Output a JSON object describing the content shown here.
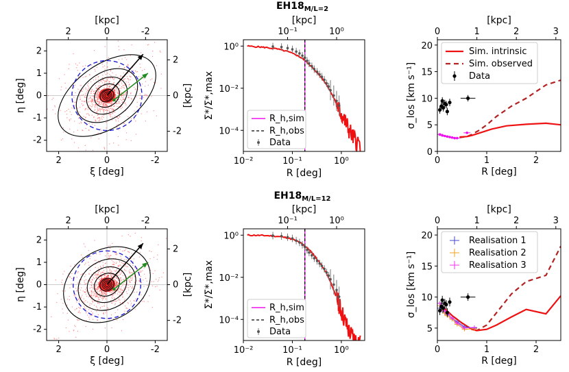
{
  "colors": {
    "sim_intrinsic": "#ee1111",
    "sim_observed": "#b22222",
    "data": "#000000",
    "rh_sim": "#ee11ee",
    "rh_obs": "#000000",
    "circle": "#1f1fd0",
    "arrow_proper_motion": "#000000",
    "arrow_orbit": "#228b22",
    "real1": "#4444cc",
    "real2": "#f0a020",
    "real3": "#ee33ee",
    "contour": "#000000",
    "particles": "#ff3333"
  },
  "chart_data": [
    {
      "id": "map1",
      "type": "scatter",
      "row": 0,
      "title": "",
      "xlabel": "ξ  [deg]",
      "ylabel": "η  [deg]",
      "top_label": "[kpc]",
      "right_label": "[kpc]",
      "xlim": [
        2.5,
        -2.5
      ],
      "ylim": [
        -2.5,
        2.5
      ],
      "x_ticks": [
        2,
        0,
        -2
      ],
      "y_ticks": [
        -2,
        -1,
        0,
        1,
        2
      ],
      "top_ticks": [
        2,
        0,
        -2
      ],
      "right_ticks": [
        2,
        0,
        -2
      ],
      "kpc_per_deg": 1.25,
      "ellipse_axes": [
        [
          0.3,
          0.24
        ],
        [
          0.55,
          0.45
        ],
        [
          0.9,
          0.7
        ],
        [
          1.4,
          0.95
        ],
        [
          2.3,
          1.3
        ]
      ],
      "ellipse_angle_deg": 35,
      "circle_radius_deg": 1.45,
      "arrow_proper_motion": {
        "from": [
          0,
          0
        ],
        "to": [
          -1.5,
          1.85
        ]
      },
      "arrow_orbit": {
        "from": [
          -0.35,
          -0.15
        ],
        "to": [
          -1.7,
          1.0
        ]
      }
    },
    {
      "id": "prof1",
      "type": "line",
      "row": 0,
      "title": "EH18",
      "title_sub": "M/L=2",
      "xlabel": "R   [deg]",
      "ylabel": "Σ*/Σ*,max",
      "top_label": "[kpc]",
      "xscale": "log",
      "yscale": "log",
      "xlim": [
        0.01,
        3.0
      ],
      "ylim": [
        1e-05,
        2.0
      ],
      "x_ticks": [
        0.01,
        0.1,
        1
      ],
      "x_tick_labels": [
        "10⁻²",
        "10⁻¹",
        "10⁰"
      ],
      "y_ticks": [
        0.0001,
        0.01,
        1
      ],
      "y_tick_labels": [
        "10⁻⁴",
        "10⁻²",
        "10⁰"
      ],
      "top_ticks_kpc": [
        0.1,
        1
      ],
      "top_tick_labels": [
        "10⁻¹",
        "10⁰"
      ],
      "kpc_per_deg": 1.25,
      "rh_sim": 0.18,
      "rh_obs": 0.18,
      "sim_profile": {
        "x": [
          0.012,
          0.02,
          0.03,
          0.05,
          0.08,
          0.12,
          0.16,
          0.2,
          0.25,
          0.3,
          0.4,
          0.5,
          0.6,
          0.7,
          0.8,
          0.9,
          1.0,
          1.2,
          1.4,
          1.7,
          2.0,
          2.5
        ],
        "y": [
          1.0,
          0.92,
          0.85,
          0.72,
          0.55,
          0.38,
          0.26,
          0.17,
          0.1,
          0.065,
          0.03,
          0.015,
          0.007,
          0.0035,
          0.0018,
          0.001,
          0.0006,
          0.00025,
          0.00012,
          5e-05,
          3e-05,
          2e-05
        ]
      },
      "data": {
        "x": [
          0.04,
          0.06,
          0.08,
          0.1,
          0.12,
          0.14,
          0.16,
          0.18,
          0.2,
          0.22,
          0.25,
          0.28,
          0.32,
          0.36,
          0.4,
          0.45,
          0.5,
          0.55,
          0.6,
          0.7,
          0.8,
          0.9
        ],
        "y": [
          0.95,
          0.9,
          0.8,
          0.7,
          0.55,
          0.45,
          0.35,
          0.28,
          0.2,
          0.15,
          0.11,
          0.08,
          0.06,
          0.045,
          0.035,
          0.025,
          0.017,
          0.012,
          0.008,
          0.0045,
          0.0025,
          0.0015
        ],
        "err_factor": 1.5
      },
      "legend": [
        "R_h,sim",
        "R_h,obs",
        "Data"
      ]
    },
    {
      "id": "disp1",
      "type": "line",
      "row": 0,
      "xlabel": "R   [deg]",
      "ylabel": "σ_los [km s⁻¹]",
      "top_label": "[kpc]",
      "xlim": [
        0,
        2.5
      ],
      "ylim": [
        0,
        21
      ],
      "x_ticks": [
        0,
        1,
        2
      ],
      "y_ticks": [
        0,
        5,
        10,
        15,
        20
      ],
      "top_ticks": [
        0,
        1,
        2,
        3
      ],
      "kpc_per_deg": 1.25,
      "sim_intrinsic": {
        "x": [
          0.45,
          0.6,
          0.7,
          0.9,
          1.1,
          1.4,
          1.8,
          2.2,
          2.5
        ],
        "y": [
          2.7,
          2.8,
          3.0,
          3.6,
          4.2,
          4.8,
          5.1,
          5.3,
          5.0
        ]
      },
      "sim_observed": {
        "x": [
          0.45,
          0.6,
          0.7,
          0.85,
          1.0,
          1.2,
          1.5,
          1.8,
          2.2,
          2.5
        ],
        "y": [
          2.6,
          2.8,
          3.2,
          4.0,
          5.0,
          6.6,
          8.5,
          10.0,
          12.5,
          13.4
        ]
      },
      "sim_points": {
        "x": [
          0.05,
          0.1,
          0.15,
          0.2,
          0.25,
          0.3,
          0.35,
          0.4,
          0.6
        ],
        "y": [
          3.2,
          3.0,
          2.9,
          2.8,
          2.7,
          2.6,
          2.5,
          2.5,
          3.5
        ]
      },
      "data": {
        "x": [
          0.05,
          0.08,
          0.1,
          0.12,
          0.15,
          0.18,
          0.2,
          0.25,
          0.62
        ],
        "y": [
          7.8,
          8.5,
          9.5,
          8.2,
          9.0,
          8.8,
          7.5,
          9.2,
          10.0
        ],
        "yerr": [
          0.7,
          0.7,
          0.7,
          0.7,
          0.7,
          0.7,
          0.7,
          0.7,
          0.6
        ],
        "xerr": [
          0,
          0,
          0,
          0,
          0,
          0,
          0,
          0,
          0.15
        ]
      },
      "legend": [
        "Sim. intrinsic",
        "Sim. observed",
        "Data"
      ]
    },
    {
      "id": "map2",
      "type": "scatter",
      "row": 1,
      "title": "",
      "xlabel": "ξ  [deg]",
      "ylabel": "η  [deg]",
      "top_label": "[kpc]",
      "right_label": "[kpc]",
      "xlim": [
        2.5,
        -2.5
      ],
      "ylim": [
        -2.5,
        2.5
      ],
      "x_ticks": [
        2,
        0,
        -2
      ],
      "y_ticks": [
        -2,
        -1,
        0,
        1,
        2
      ],
      "top_ticks": [
        2,
        0,
        -2
      ],
      "right_ticks": [
        2,
        0,
        -2
      ],
      "kpc_per_deg": 1.25,
      "ellipse_axes": [
        [
          0.3,
          0.25
        ],
        [
          0.55,
          0.45
        ],
        [
          0.85,
          0.7
        ],
        [
          1.25,
          1.0
        ],
        [
          1.9,
          1.45
        ]
      ],
      "ellipse_angle_deg": 30,
      "circle_radius_deg": 1.4,
      "arrow_proper_motion": {
        "from": [
          0,
          0
        ],
        "to": [
          -1.5,
          1.85
        ]
      },
      "arrow_orbit": {
        "from": [
          -0.35,
          -0.15
        ],
        "to": [
          -1.7,
          1.0
        ]
      }
    },
    {
      "id": "prof2",
      "type": "line",
      "row": 1,
      "title": "EH18",
      "title_sub": "M/L=12",
      "xlabel": "R   [deg]",
      "ylabel": "Σ*/Σ*,max",
      "top_label": "[kpc]",
      "xscale": "log",
      "yscale": "log",
      "xlim": [
        0.01,
        3.0
      ],
      "ylim": [
        1e-05,
        2.0
      ],
      "x_ticks": [
        0.01,
        0.1,
        1
      ],
      "x_tick_labels": [
        "10⁻²",
        "10⁻¹",
        "10⁰"
      ],
      "y_ticks": [
        0.0001,
        0.01,
        1
      ],
      "y_tick_labels": [
        "10⁻⁴",
        "10⁻²",
        "10⁰"
      ],
      "top_ticks_kpc": [
        0.1,
        1
      ],
      "top_tick_labels": [
        "10⁻¹",
        "10⁰"
      ],
      "kpc_per_deg": 1.25,
      "rh_sim": 0.18,
      "rh_obs": 0.18,
      "sim_profile": {
        "x": [
          0.012,
          0.02,
          0.03,
          0.05,
          0.08,
          0.12,
          0.16,
          0.2,
          0.25,
          0.3,
          0.4,
          0.5,
          0.6,
          0.7,
          0.8,
          0.9,
          1.0,
          1.2,
          1.4,
          1.7,
          2.0,
          2.5
        ],
        "y": [
          1.0,
          0.98,
          0.95,
          0.88,
          0.75,
          0.55,
          0.38,
          0.25,
          0.15,
          0.09,
          0.035,
          0.015,
          0.006,
          0.0025,
          0.0011,
          0.0005,
          0.00025,
          8e-05,
          3e-05,
          1.5e-05,
          1e-05,
          1e-05
        ]
      },
      "data": {
        "x": [
          0.04,
          0.06,
          0.08,
          0.1,
          0.12,
          0.14,
          0.16,
          0.18,
          0.2,
          0.22,
          0.25,
          0.28,
          0.32,
          0.36,
          0.4,
          0.45,
          0.5,
          0.55,
          0.6,
          0.7,
          0.8,
          0.9
        ],
        "y": [
          0.95,
          0.9,
          0.8,
          0.7,
          0.55,
          0.45,
          0.35,
          0.28,
          0.2,
          0.15,
          0.11,
          0.08,
          0.06,
          0.045,
          0.035,
          0.025,
          0.017,
          0.012,
          0.008,
          0.0045,
          0.0025,
          0.0012
        ],
        "err_factor": 1.5
      },
      "legend": [
        "R_h,sim",
        "R_h,obs",
        "Data"
      ]
    },
    {
      "id": "disp2",
      "type": "line",
      "row": 1,
      "xlabel": "R   [deg]",
      "ylabel": "σ_los [km s⁻¹]",
      "top_label": "[kpc]",
      "xlim": [
        0,
        2.5
      ],
      "ylim": [
        3,
        21
      ],
      "x_ticks": [
        0,
        1,
        2
      ],
      "y_ticks": [
        5,
        10,
        15,
        20
      ],
      "top_ticks": [
        0,
        1,
        2,
        3
      ],
      "kpc_per_deg": 1.25,
      "sim_intrinsic": {
        "x": [
          0.1,
          0.3,
          0.5,
          0.7,
          0.8,
          1.0,
          1.2,
          1.5,
          1.8,
          2.2,
          2.5
        ],
        "y": [
          8.5,
          7.0,
          5.8,
          4.8,
          4.6,
          4.8,
          5.5,
          6.8,
          8.0,
          7.3,
          10.2
        ]
      },
      "sim_observed": {
        "x": [
          0.1,
          0.3,
          0.5,
          0.7,
          0.8,
          1.0,
          1.2,
          1.5,
          1.8,
          2.2,
          2.5
        ],
        "y": [
          8.5,
          7.0,
          5.8,
          4.8,
          4.6,
          5.5,
          7.5,
          10.5,
          12.5,
          13.5,
          18.2
        ]
      },
      "real1": {
        "x": [
          0.05,
          0.1,
          0.15,
          0.2,
          0.3,
          0.4,
          0.55,
          0.75
        ],
        "y": [
          8.2,
          7.8,
          7.6,
          7.2,
          6.6,
          6.0,
          5.2,
          5.0
        ]
      },
      "real2": {
        "x": [
          0.05,
          0.1,
          0.15,
          0.2,
          0.3,
          0.4,
          0.55,
          0.75
        ],
        "y": [
          8.6,
          8.0,
          7.4,
          7.0,
          6.4,
          5.6,
          4.8,
          4.9
        ]
      },
      "real3": {
        "x": [
          0.05,
          0.1,
          0.15,
          0.2,
          0.3,
          0.4,
          0.55,
          0.75
        ],
        "y": [
          9.0,
          8.4,
          7.8,
          7.3,
          6.6,
          5.8,
          5.0,
          5.1
        ]
      },
      "data": {
        "x": [
          0.05,
          0.08,
          0.1,
          0.12,
          0.15,
          0.18,
          0.2,
          0.25,
          0.62
        ],
        "y": [
          7.8,
          8.5,
          9.5,
          8.2,
          9.0,
          8.8,
          7.5,
          9.2,
          10.0
        ],
        "yerr": [
          0.7,
          0.7,
          0.7,
          0.7,
          0.7,
          0.7,
          0.7,
          0.7,
          0.6
        ],
        "xerr": [
          0,
          0,
          0,
          0,
          0,
          0,
          0,
          0,
          0.15
        ]
      },
      "legend": [
        "Realisation 1",
        "Realisation 2",
        "Realisation 3"
      ]
    }
  ]
}
